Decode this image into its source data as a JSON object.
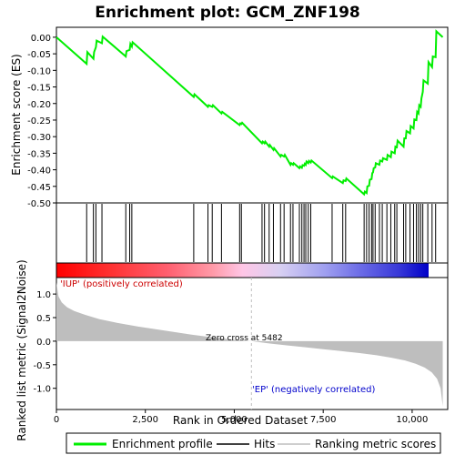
{
  "title": "Enrichment plot: GCM_ZNF198",
  "colors": {
    "es_line": "#00ee00",
    "hits": "#000000",
    "metric_fill": "#bebebe",
    "zero_line": "#bebebe",
    "text_red": "#cc0000",
    "text_blue": "#0000cc"
  },
  "top_panel": {
    "ylabel": "Enrichment score (ES)",
    "yticks": [
      "0.00",
      "-0.05",
      "-0.10",
      "-0.15",
      "-0.20",
      "-0.25",
      "-0.30",
      "-0.35",
      "-0.40",
      "-0.45",
      "-0.50"
    ]
  },
  "bottom_panel": {
    "ylabel": "Ranked list metric (Signal2Noise)",
    "yticks": [
      "1.0",
      "0.5",
      "0.0",
      "-0.5",
      "-1.0"
    ],
    "zero_cross_label": "Zero cross at 5482",
    "pos_label": "'IUP' (positively correlated)",
    "neg_label": "'EP' (negatively correlated)"
  },
  "xaxis": {
    "label": "Rank in Ordered Dataset",
    "ticks": [
      "0",
      "2,500",
      "5,000",
      "7,500",
      "10,000"
    ]
  },
  "legend": {
    "enrichment_profile": "Enrichment profile",
    "hits": "Hits",
    "ranking_metric": "Ranking metric scores"
  },
  "chart_data": {
    "type": "line",
    "title": "Enrichment plot: GCM_ZNF198",
    "xlabel": "Rank in Ordered Dataset",
    "ylabel": "Enrichment score (ES)",
    "xlim": [
      0,
      11000
    ],
    "ylim": [
      -0.5,
      0.03
    ],
    "dataset_size": 10860,
    "zero_cross": 5482,
    "es_profile": {
      "x": [
        0,
        850,
        870,
        1040,
        1060,
        1110,
        1130,
        1280,
        1300,
        1950,
        1970,
        2060,
        2080,
        2120,
        2140,
        3860,
        3880,
        4260,
        4280,
        4380,
        4400,
        4640,
        4660,
        5150,
        5170,
        5200,
        5220,
        5780,
        5800,
        5850,
        5870,
        5980,
        6000,
        6100,
        6120,
        6300,
        6320,
        6400,
        6420,
        6580,
        6600,
        6650,
        6670,
        6830,
        6850,
        6900,
        6920,
        6960,
        6980,
        7010,
        7030,
        7080,
        7100,
        7150,
        7170,
        7750,
        7770,
        8050,
        8070,
        8130,
        8150,
        8650,
        8670,
        8720,
        8740,
        8790,
        8810,
        8860,
        8880,
        8900,
        8920,
        8960,
        8980,
        9080,
        9100,
        9160,
        9180,
        9290,
        9310,
        9400,
        9420,
        9510,
        9530,
        9570,
        9590,
        9760,
        9780,
        9820,
        9840,
        9940,
        9960,
        10040,
        10060,
        10120,
        10140,
        10180,
        10200,
        10240,
        10260,
        10300,
        10320,
        10440,
        10460,
        10560,
        10580,
        10660,
        10680,
        10860
      ],
      "y": [
        0.0,
        -0.08,
        -0.045,
        -0.065,
        -0.045,
        -0.03,
        -0.01,
        -0.018,
        0.002,
        -0.058,
        -0.042,
        -0.038,
        -0.02,
        -0.028,
        -0.015,
        -0.18,
        -0.172,
        -0.21,
        -0.205,
        -0.21,
        -0.205,
        -0.23,
        -0.225,
        -0.265,
        -0.26,
        -0.262,
        -0.258,
        -0.32,
        -0.315,
        -0.32,
        -0.315,
        -0.33,
        -0.325,
        -0.34,
        -0.335,
        -0.36,
        -0.355,
        -0.36,
        -0.355,
        -0.385,
        -0.38,
        -0.385,
        -0.38,
        -0.395,
        -0.39,
        -0.394,
        -0.386,
        -0.388,
        -0.382,
        -0.385,
        -0.375,
        -0.38,
        -0.373,
        -0.378,
        -0.372,
        -0.425,
        -0.42,
        -0.44,
        -0.432,
        -0.434,
        -0.426,
        -0.474,
        -0.466,
        -0.47,
        -0.45,
        -0.448,
        -0.43,
        -0.428,
        -0.41,
        -0.408,
        -0.395,
        -0.393,
        -0.38,
        -0.385,
        -0.372,
        -0.375,
        -0.365,
        -0.37,
        -0.355,
        -0.362,
        -0.345,
        -0.35,
        -0.33,
        -0.332,
        -0.312,
        -0.33,
        -0.305,
        -0.305,
        -0.283,
        -0.29,
        -0.268,
        -0.275,
        -0.248,
        -0.25,
        -0.225,
        -0.23,
        -0.205,
        -0.21,
        -0.185,
        -0.165,
        -0.13,
        -0.14,
        -0.075,
        -0.09,
        -0.058,
        -0.06,
        0.018,
        0.0
      ]
    },
    "hits": [
      850,
      1040,
      1110,
      1280,
      1950,
      2060,
      2120,
      3860,
      4260,
      4380,
      4640,
      5150,
      5200,
      5780,
      5850,
      5980,
      6100,
      6300,
      6400,
      6580,
      6650,
      6830,
      6900,
      6960,
      7010,
      7080,
      7150,
      7750,
      8050,
      8130,
      8650,
      8720,
      8790,
      8860,
      8900,
      8960,
      9080,
      9160,
      9290,
      9400,
      9510,
      9570,
      9760,
      9820,
      9940,
      10040,
      10120,
      10180,
      10240,
      10300,
      10440,
      10560,
      10660
    ],
    "ranking_metric": {
      "ylim": [
        -1.45,
        1.35
      ],
      "x": [
        0,
        60,
        150,
        300,
        500,
        800,
        1200,
        1700,
        2300,
        3000,
        3800,
        4500,
        5000,
        5482,
        6000,
        6500,
        7000,
        7500,
        8000,
        8500,
        9000,
        9400,
        9800,
        10100,
        10350,
        10550,
        10700,
        10800,
        10840,
        10860
      ],
      "y": [
        1.25,
        0.95,
        0.82,
        0.72,
        0.64,
        0.56,
        0.47,
        0.39,
        0.31,
        0.23,
        0.14,
        0.07,
        0.03,
        0.0,
        -0.05,
        -0.09,
        -0.13,
        -0.17,
        -0.21,
        -0.25,
        -0.3,
        -0.35,
        -0.41,
        -0.48,
        -0.56,
        -0.66,
        -0.8,
        -1.0,
        -1.25,
        -1.38
      ]
    }
  }
}
